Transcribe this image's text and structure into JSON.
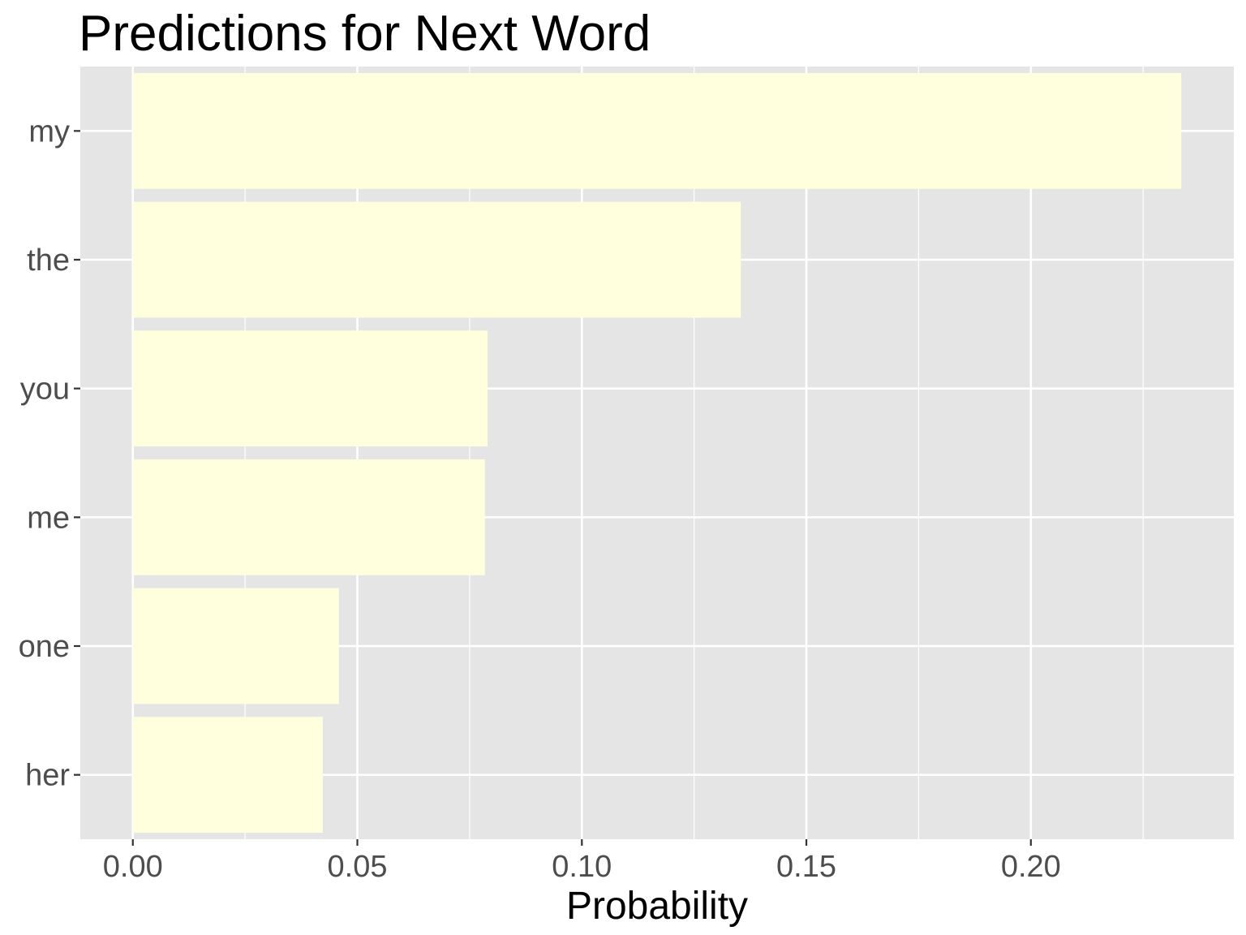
{
  "chart_data": {
    "type": "bar",
    "orientation": "horizontal",
    "title": "Predictions for Next Word",
    "xlabel": "Probability",
    "ylabel": "",
    "categories": [
      "my",
      "the",
      "you",
      "me",
      "one",
      "her"
    ],
    "values": [
      0.2335,
      0.1354,
      0.079,
      0.0784,
      0.0459,
      0.0423
    ],
    "xlim": [
      -0.0117,
      0.2452
    ],
    "x_ticks": [
      0.0,
      0.05,
      0.1,
      0.15,
      0.2
    ],
    "x_tick_labels": [
      "0.00",
      "0.05",
      "0.10",
      "0.15",
      "0.20"
    ],
    "grid": true,
    "legend": "none",
    "colors": {
      "bar_fill": "#ffffdd",
      "panel_background": "#e5e5e5",
      "grid_line": "#ffffff",
      "tick_text": "#4d4d4d",
      "tick_mark": "#333333"
    }
  }
}
